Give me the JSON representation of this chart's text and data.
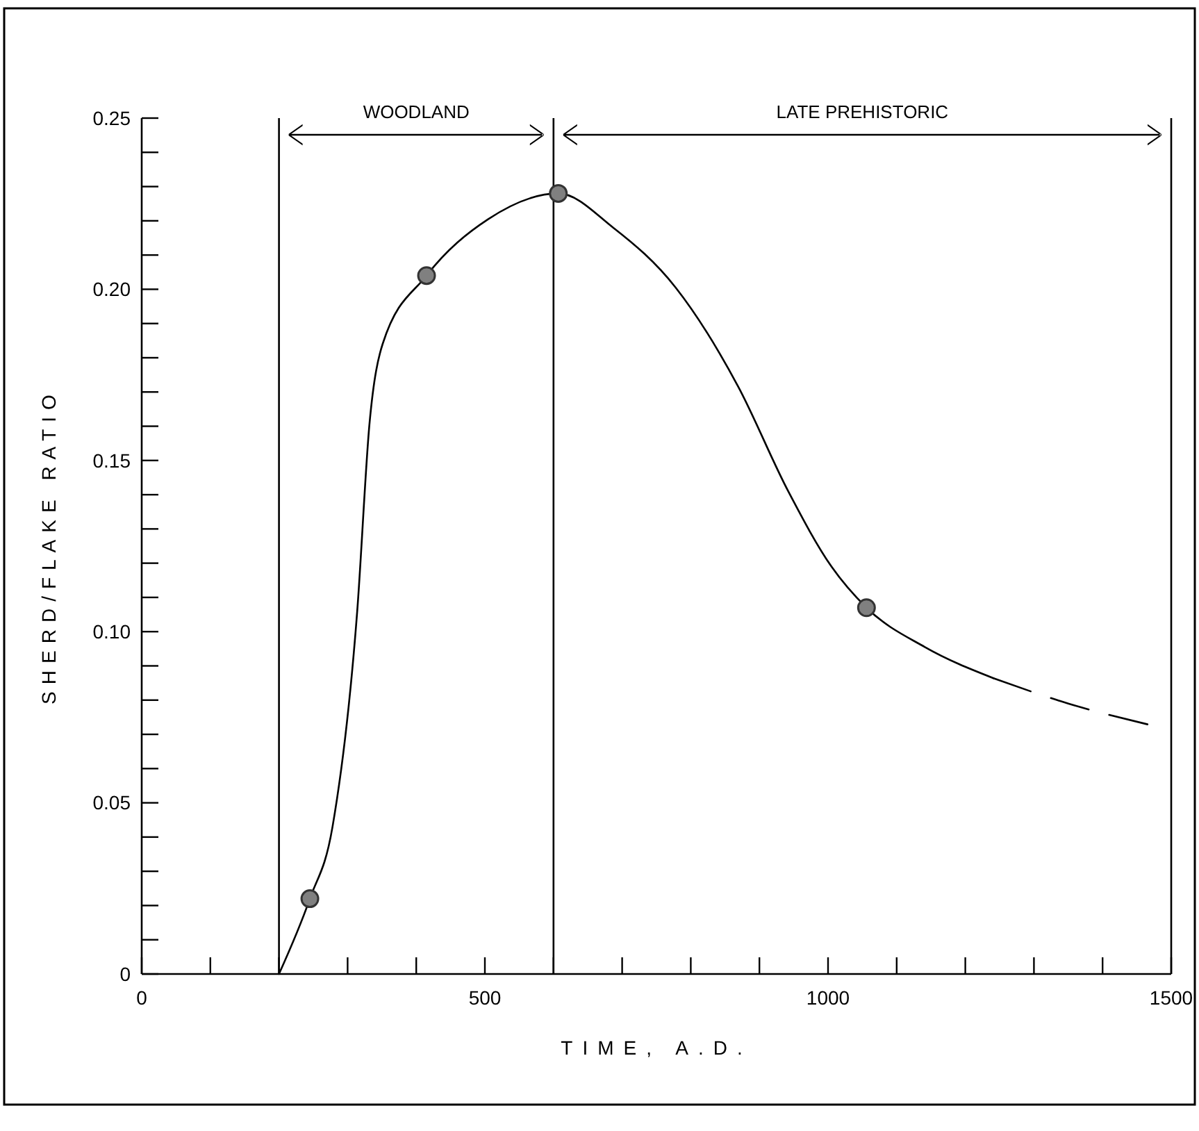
{
  "chart_data": {
    "type": "line",
    "xlabel": "TIME, A.D.",
    "ylabel": "SHERD/FLAKE RATIO",
    "xlim": [
      0,
      1500
    ],
    "ylim": [
      0,
      0.25
    ],
    "xticks": [
      0,
      {
        "value": 100,
        "label": null
      },
      {
        "value": 200,
        "label": null
      },
      {
        "value": 300,
        "label": null
      },
      {
        "value": 400,
        "label": null
      },
      500,
      {
        "value": 600,
        "label": null
      },
      {
        "value": 700,
        "label": null
      },
      {
        "value": 800,
        "label": null
      },
      {
        "value": 900,
        "label": null
      },
      1000,
      {
        "value": 1100,
        "label": null
      },
      {
        "value": 1200,
        "label": null
      },
      {
        "value": 1300,
        "label": null
      },
      {
        "value": 1400,
        "label": null
      },
      1500
    ],
    "yticks": [
      0,
      {
        "value": 0.01,
        "label": null
      },
      {
        "value": 0.02,
        "label": null
      },
      {
        "value": 0.03,
        "label": null
      },
      {
        "value": 0.04,
        "label": null
      },
      0.05,
      {
        "value": 0.06,
        "label": null
      },
      {
        "value": 0.07,
        "label": null
      },
      {
        "value": 0.08,
        "label": null
      },
      {
        "value": 0.09,
        "label": null
      },
      {
        "value": 0.1,
        "label": "0.10"
      },
      {
        "value": 0.11,
        "label": null
      },
      {
        "value": 0.12,
        "label": null
      },
      {
        "value": 0.13,
        "label": null
      },
      {
        "value": 0.14,
        "label": null
      },
      0.15,
      {
        "value": 0.16,
        "label": null
      },
      {
        "value": 0.17,
        "label": null
      },
      {
        "value": 0.18,
        "label": null
      },
      {
        "value": 0.19,
        "label": null
      },
      {
        "value": 0.2,
        "label": "0.20"
      },
      {
        "value": 0.21,
        "label": null
      },
      {
        "value": 0.22,
        "label": null
      },
      {
        "value": 0.23,
        "label": null
      },
      {
        "value": 0.24,
        "label": null
      },
      0.25
    ],
    "grid": false,
    "ref_lines": [
      {
        "axis": "x",
        "value": 200,
        "color": "#000000"
      },
      {
        "axis": "x",
        "value": 600,
        "color": "#000000"
      }
    ],
    "annotations": [
      "WOODLAND",
      "LATE PREHISTORIC"
    ],
    "series": [
      {
        "color": "#000000",
        "marker": "none",
        "line_style": "solid",
        "x": [
          200,
          245,
          278,
          314,
          332,
          351,
          415,
          505,
          607,
          687,
          778,
          869,
          942,
          1005,
          1056,
          1141,
          1241
        ],
        "values": [
          0,
          0.022,
          0.043,
          0.106,
          0.161,
          0.184,
          0.204,
          0.2205,
          0.228,
          0.218,
          0.2005,
          0.1716,
          0.141,
          0.119,
          0.107,
          0.0955,
          0.0864
        ]
      },
      {
        "color": "#000000",
        "marker": "none",
        "line_style": "dashed",
        "x": [
          1241,
          1350,
          1468
        ],
        "values": [
          0.0864,
          0.079,
          0.0728
        ]
      },
      {
        "type": "scatter",
        "color": "#808080",
        "marker": "circle",
        "x": [
          245,
          415,
          607,
          1056
        ],
        "values": [
          0.022,
          0.204,
          0.228,
          0.107
        ]
      }
    ]
  }
}
